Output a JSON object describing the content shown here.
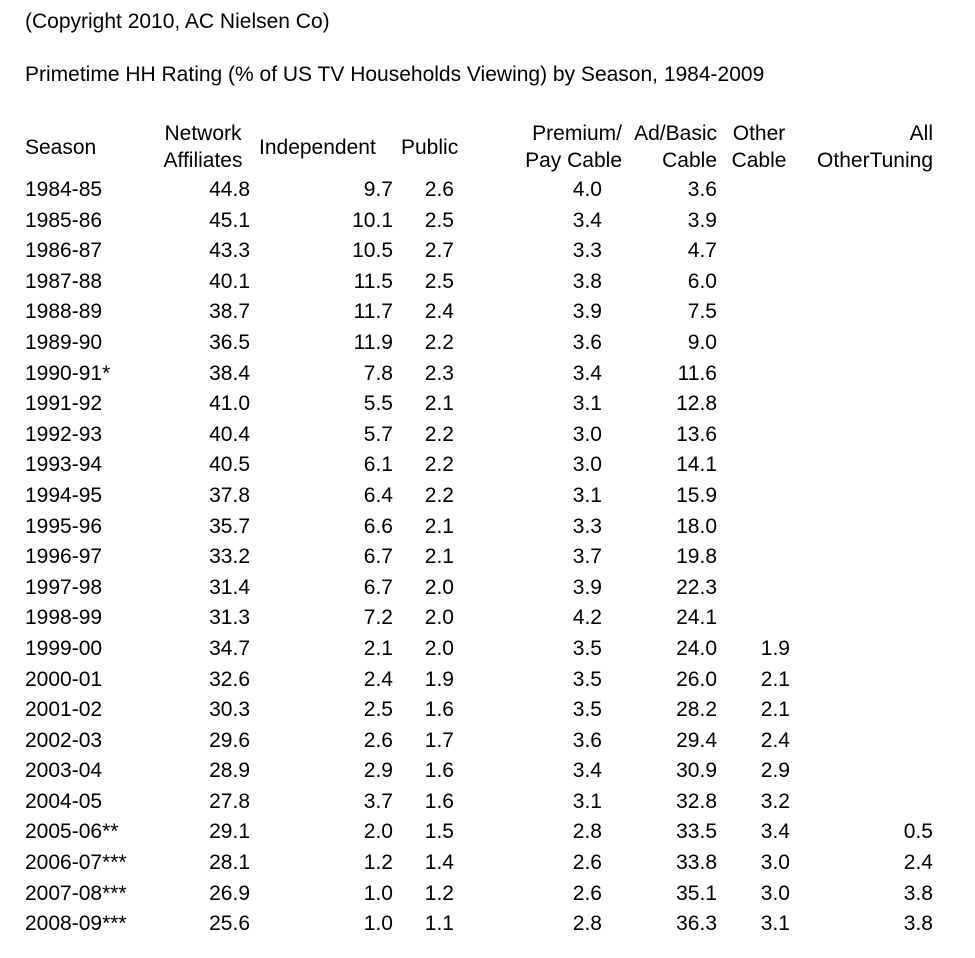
{
  "copyright": "(Copyright 2010, AC Nielsen Co)",
  "title": "Primetime HH Rating (% of US TV Households Viewing) by Season, 1984-2009",
  "headers": {
    "season": "Season",
    "network_line1": "Network",
    "network_line2": "Affiliates",
    "independent": "Independent",
    "public": "Public",
    "premium_line1": "Premium/",
    "premium_line2": "Pay Cable",
    "adbasic_line1": "Ad/Basic",
    "adbasic_line2": "Cable",
    "other_line1": "Other",
    "other_line2": "Cable",
    "all_line1": "All",
    "all_line2": "OtherTuning"
  },
  "rows": [
    {
      "season": "1984-85",
      "network": "44.8",
      "independent": "9.7",
      "public": "2.6",
      "premium": "4.0",
      "adbasic": "3.6",
      "other": "",
      "all": ""
    },
    {
      "season": "1985-86",
      "network": "45.1",
      "independent": "10.1",
      "public": "2.5",
      "premium": "3.4",
      "adbasic": "3.9",
      "other": "",
      "all": ""
    },
    {
      "season": "1986-87",
      "network": "43.3",
      "independent": "10.5",
      "public": "2.7",
      "premium": "3.3",
      "adbasic": "4.7",
      "other": "",
      "all": ""
    },
    {
      "season": "1987-88",
      "network": "40.1",
      "independent": "11.5",
      "public": "2.5",
      "premium": "3.8",
      "adbasic": "6.0",
      "other": "",
      "all": ""
    },
    {
      "season": "1988-89",
      "network": "38.7",
      "independent": "11.7",
      "public": "2.4",
      "premium": "3.9",
      "adbasic": "7.5",
      "other": "",
      "all": ""
    },
    {
      "season": "1989-90",
      "network": "36.5",
      "independent": "11.9",
      "public": "2.2",
      "premium": "3.6",
      "adbasic": "9.0",
      "other": "",
      "all": ""
    },
    {
      "season": "1990-91*",
      "network": "38.4",
      "independent": "7.8",
      "public": "2.3",
      "premium": "3.4",
      "adbasic": "11.6",
      "other": "",
      "all": ""
    },
    {
      "season": "1991-92",
      "network": "41.0",
      "independent": "5.5",
      "public": "2.1",
      "premium": "3.1",
      "adbasic": "12.8",
      "other": "",
      "all": ""
    },
    {
      "season": "1992-93",
      "network": "40.4",
      "independent": "5.7",
      "public": "2.2",
      "premium": "3.0",
      "adbasic": "13.6",
      "other": "",
      "all": ""
    },
    {
      "season": "1993-94",
      "network": "40.5",
      "independent": "6.1",
      "public": "2.2",
      "premium": "3.0",
      "adbasic": "14.1",
      "other": "",
      "all": ""
    },
    {
      "season": "1994-95",
      "network": "37.8",
      "independent": "6.4",
      "public": "2.2",
      "premium": "3.1",
      "adbasic": "15.9",
      "other": "",
      "all": ""
    },
    {
      "season": "1995-96",
      "network": "35.7",
      "independent": "6.6",
      "public": "2.1",
      "premium": "3.3",
      "adbasic": "18.0",
      "other": "",
      "all": ""
    },
    {
      "season": "1996-97",
      "network": "33.2",
      "independent": "6.7",
      "public": "2.1",
      "premium": "3.7",
      "adbasic": "19.8",
      "other": "",
      "all": ""
    },
    {
      "season": "1997-98",
      "network": "31.4",
      "independent": "6.7",
      "public": "2.0",
      "premium": "3.9",
      "adbasic": "22.3",
      "other": "",
      "all": ""
    },
    {
      "season": "1998-99",
      "network": "31.3",
      "independent": "7.2",
      "public": "2.0",
      "premium": "4.2",
      "adbasic": "24.1",
      "other": "",
      "all": ""
    },
    {
      "season": "1999-00",
      "network": "34.7",
      "independent": "2.1",
      "public": "2.0",
      "premium": "3.5",
      "adbasic": "24.0",
      "other": "1.9",
      "all": ""
    },
    {
      "season": "2000-01",
      "network": "32.6",
      "independent": "2.4",
      "public": "1.9",
      "premium": "3.5",
      "adbasic": "26.0",
      "other": "2.1",
      "all": ""
    },
    {
      "season": "2001-02",
      "network": "30.3",
      "independent": "2.5",
      "public": "1.6",
      "premium": "3.5",
      "adbasic": "28.2",
      "other": "2.1",
      "all": ""
    },
    {
      "season": "2002-03",
      "network": "29.6",
      "independent": "2.6",
      "public": "1.7",
      "premium": "3.6",
      "adbasic": "29.4",
      "other": "2.4",
      "all": ""
    },
    {
      "season": "2003-04",
      "network": "28.9",
      "independent": "2.9",
      "public": "1.6",
      "premium": "3.4",
      "adbasic": "30.9",
      "other": "2.9",
      "all": ""
    },
    {
      "season": "2004-05",
      "network": "27.8",
      "independent": "3.7",
      "public": "1.6",
      "premium": "3.1",
      "adbasic": "32.8",
      "other": "3.2",
      "all": ""
    },
    {
      "season": "2005-06**",
      "network": "29.1",
      "independent": "2.0",
      "public": "1.5",
      "premium": "2.8",
      "adbasic": "33.5",
      "other": "3.4",
      "all": "0.5"
    },
    {
      "season": "2006-07***",
      "network": "28.1",
      "independent": "1.2",
      "public": "1.4",
      "premium": "2.6",
      "adbasic": "33.8",
      "other": "3.0",
      "all": "2.4"
    },
    {
      "season": "2007-08***",
      "network": "26.9",
      "independent": "1.0",
      "public": "1.2",
      "premium": "2.6",
      "adbasic": "35.1",
      "other": "3.0",
      "all": "3.8"
    },
    {
      "season": "2008-09***",
      "network": "25.6",
      "independent": "1.0",
      "public": "1.1",
      "premium": "2.8",
      "adbasic": "36.3",
      "other": "3.1",
      "all": "3.8"
    }
  ]
}
